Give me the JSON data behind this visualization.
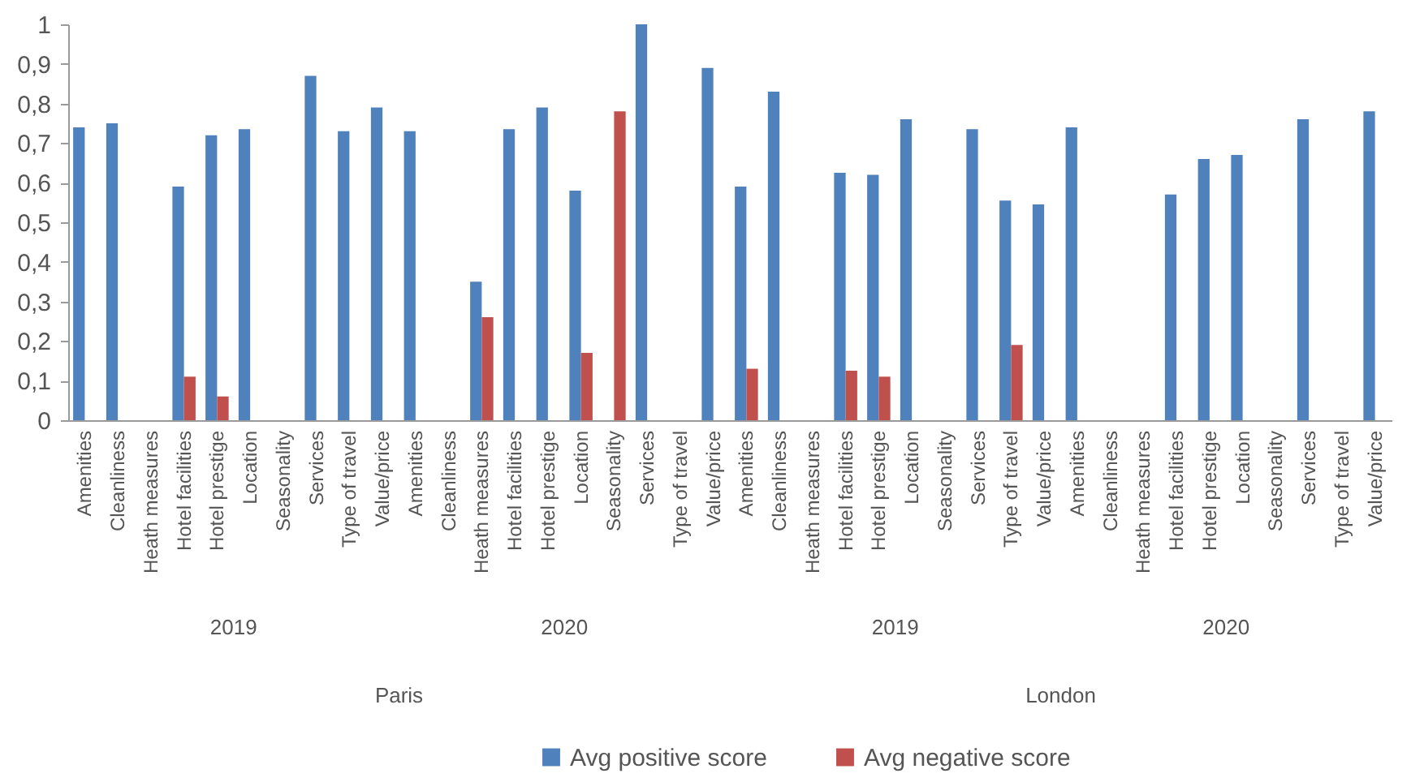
{
  "chart_data": {
    "type": "bar",
    "categories": [
      "Amenities",
      "Cleanliness",
      "Heath measures",
      "Hotel facilities",
      "Hotel prestige",
      "Location",
      "Seasonality",
      "Services",
      "Type of travel",
      "Value/price",
      "Amenities",
      "Cleanliness",
      "Heath measures",
      "Hotel facilities",
      "Hotel prestige",
      "Location",
      "Seasonality",
      "Services",
      "Type of travel",
      "Value/price",
      "Amenities",
      "Cleanliness",
      "Heath measures",
      "Hotel facilities",
      "Hotel prestige",
      "Location",
      "Seasonality",
      "Services",
      "Type of travel",
      "Value/price",
      "Amenities",
      "Cleanliness",
      "Heath measures",
      "Hotel facilities",
      "Hotel prestige",
      "Location",
      "Seasonality",
      "Services",
      "Type of travel",
      "Value/price"
    ],
    "series": [
      {
        "name": "Avg positive score",
        "color": "#4f81bd",
        "values": [
          0.74,
          0.75,
          null,
          0.59,
          0.72,
          0.735,
          null,
          0.87,
          0.73,
          0.79,
          0.73,
          null,
          0.35,
          0.735,
          0.79,
          0.58,
          null,
          1.0,
          null,
          0.89,
          0.59,
          0.83,
          null,
          0.625,
          0.62,
          0.76,
          null,
          0.735,
          0.555,
          0.545,
          0.74,
          null,
          null,
          0.57,
          0.66,
          0.67,
          null,
          0.76,
          null,
          0.78
        ]
      },
      {
        "name": "Avg negative score",
        "color": "#c0504d",
        "values": [
          null,
          null,
          null,
          0.11,
          0.06,
          null,
          null,
          null,
          null,
          null,
          null,
          null,
          0.26,
          null,
          null,
          0.17,
          0.78,
          null,
          null,
          null,
          0.13,
          null,
          null,
          0.125,
          0.11,
          null,
          null,
          null,
          0.19,
          null,
          null,
          null,
          null,
          null,
          null,
          null,
          null,
          null,
          null,
          null
        ]
      }
    ],
    "ylim": [
      0,
      1
    ],
    "yticks": [
      0,
      {
        "value": 0.1,
        "label": "0,1"
      },
      {
        "value": 0.2,
        "label": "0,2"
      },
      {
        "value": 0.3,
        "label": "0,3"
      },
      {
        "value": 0.4,
        "label": "0,4"
      },
      {
        "value": 0.5,
        "label": "0,5"
      },
      {
        "value": 0.6,
        "label": "0,6"
      },
      {
        "value": 0.7,
        "label": "0,7"
      },
      {
        "value": 0.8,
        "label": "0,8"
      },
      {
        "value": 0.9,
        "label": "0,9"
      },
      1
    ],
    "annotations": [
      "2019",
      "2020",
      "2019",
      "2020",
      "Paris",
      "London"
    ],
    "grid": false,
    "legend": "bottom"
  }
}
